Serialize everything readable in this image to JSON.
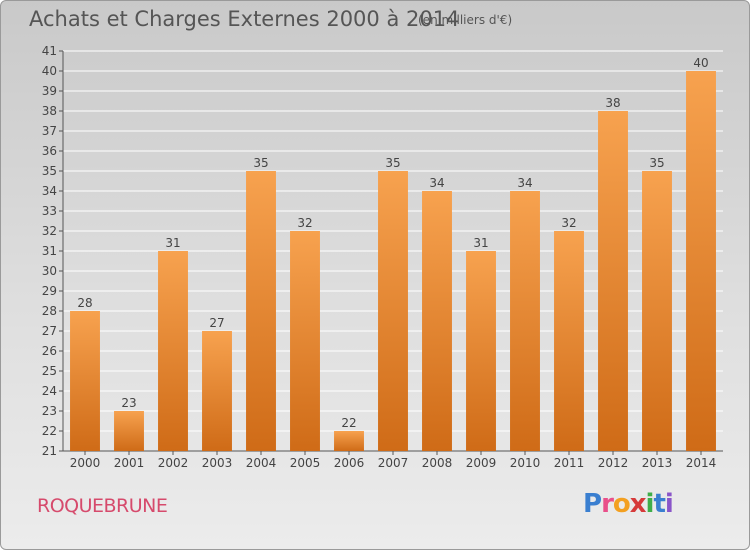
{
  "header": {
    "title": "Achats et Charges Externes 2000 à 2014",
    "subtitle": "(en milliers d'€)"
  },
  "footer": {
    "commune": "ROQUEBRUNE",
    "logo": "Proxiti",
    "logo_colors": [
      "#3a7fd0",
      "#e94f8a",
      "#f3a021",
      "#d63a3a",
      "#3fae49",
      "#3a7fd0",
      "#8a55c9"
    ]
  },
  "chart_data": {
    "type": "bar",
    "categories": [
      "2000",
      "2001",
      "2002",
      "2003",
      "2004",
      "2005",
      "2006",
      "2007",
      "2008",
      "2009",
      "2010",
      "2011",
      "2012",
      "2013",
      "2014"
    ],
    "values": [
      28,
      23,
      31,
      27,
      35,
      32,
      22,
      35,
      34,
      31,
      34,
      32,
      38,
      35,
      40
    ],
    "ylim": [
      21,
      41
    ],
    "yticks": [
      21,
      22,
      23,
      24,
      25,
      26,
      27,
      28,
      29,
      30,
      31,
      32,
      33,
      34,
      35,
      36,
      37,
      38,
      39,
      40,
      41
    ],
    "grid": true,
    "colors": {
      "bar_top": "#f7a24f",
      "bar_bottom": "#cf6b17",
      "grid": "#ffffff",
      "text": "#444444"
    }
  }
}
